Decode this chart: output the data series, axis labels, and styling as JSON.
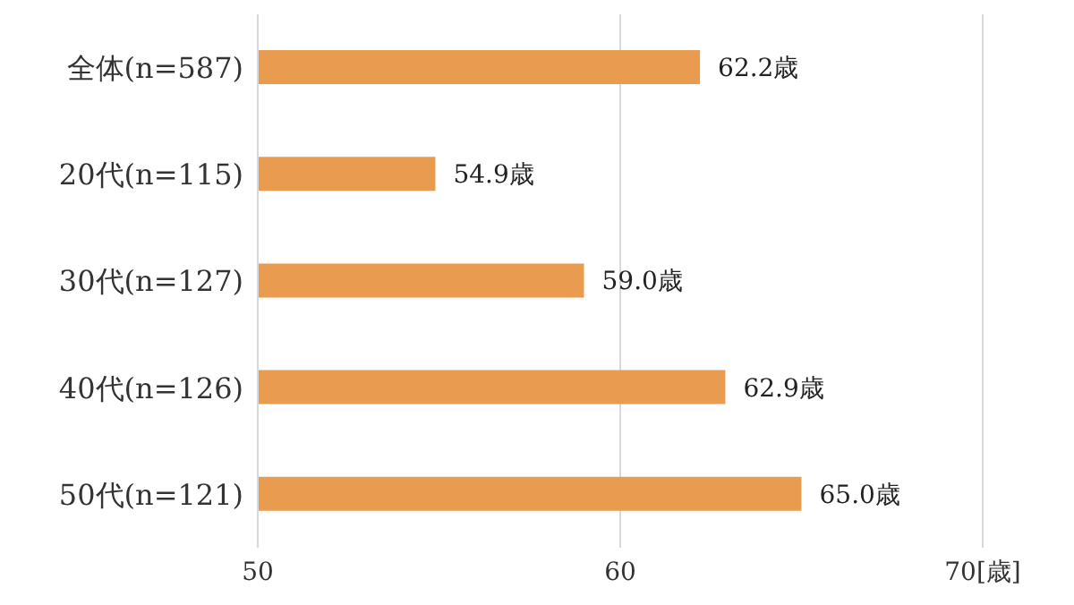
{
  "chart_data": {
    "type": "bar",
    "orientation": "horizontal",
    "categories": [
      "全体(n=587)",
      "20代(n=115)",
      "30代(n=127)",
      "40代(n=126)",
      "50代(n=121)"
    ],
    "values": [
      62.2,
      54.9,
      59.0,
      62.9,
      65.0
    ],
    "color": "#e99b4f",
    "value_labels": [
      "62.2歳",
      "54.9歳",
      "59.0歳",
      "62.9歳",
      "65.0歳"
    ],
    "xlim": [
      50,
      70
    ],
    "xticks": [
      50,
      60,
      {
        "value": 70,
        "label": "70[歳]"
      }
    ],
    "grid": "x"
  }
}
